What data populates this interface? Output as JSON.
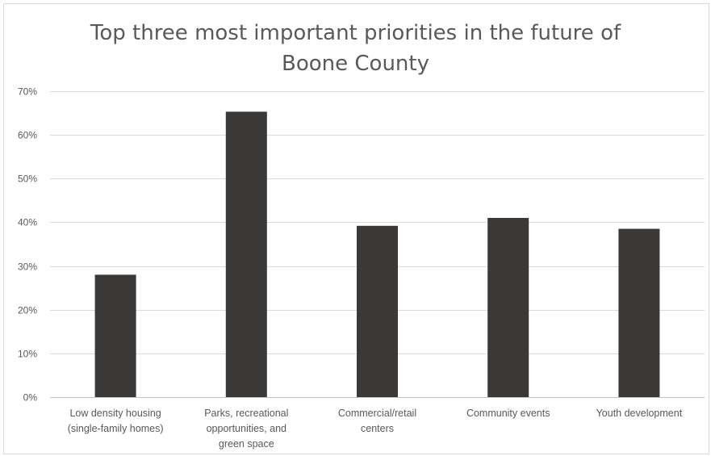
{
  "chart_data": {
    "type": "bar",
    "title_lines": [
      "Top three most important priorities in the future of",
      "Boone County"
    ],
    "categories": [
      [
        "Low density housing",
        "(single-family homes)"
      ],
      [
        "Parks, recreational",
        "opportunities, and",
        "green space"
      ],
      [
        "Commercial/retail",
        "centers"
      ],
      [
        "Community events"
      ],
      [
        "Youth development"
      ]
    ],
    "values": [
      28,
      65.3,
      39.2,
      41,
      38.5
    ],
    "xlabel": "",
    "ylabel": "",
    "ylim": [
      0,
      70
    ],
    "y_ticks": [
      0,
      10,
      20,
      30,
      40,
      50,
      60,
      70
    ],
    "y_tick_labels": [
      "0%",
      "10%",
      "20%",
      "30%",
      "40%",
      "50%",
      "60%",
      "70%"
    ],
    "grid": true,
    "legend": "none",
    "bar_color": "#3a3938",
    "grid_color": "#d9d9d9",
    "text_color": "#595959"
  }
}
